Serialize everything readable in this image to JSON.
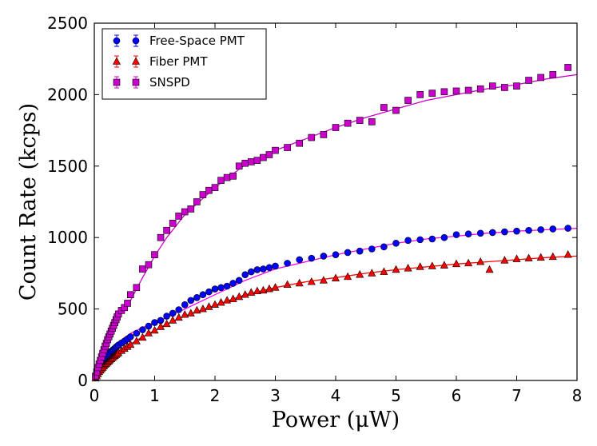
{
  "chart_data": {
    "type": "scatter",
    "title": "",
    "xlabel": "Power (μW)",
    "ylabel": "Count Rate (kcps)",
    "xlim": [
      0,
      8
    ],
    "ylim": [
      0,
      2500
    ],
    "xticks": [
      0,
      1,
      2,
      3,
      4,
      5,
      6,
      7,
      8
    ],
    "yticks": [
      0,
      500,
      1000,
      1500,
      2000,
      2500
    ],
    "xtick_labels": [
      "0",
      "1",
      "2",
      "3",
      "4",
      "5",
      "6",
      "7",
      "8"
    ],
    "ytick_labels": [
      "0",
      "500",
      "1000",
      "1500",
      "2000",
      "2500"
    ],
    "grid": false,
    "legend_position": "top-left",
    "series": [
      {
        "name": "Free-Space PMT",
        "marker": "circle",
        "color": "#0000ff",
        "edge_color": "#000000",
        "line_color": "#ff00ff",
        "x": [
          0.02,
          0.04,
          0.06,
          0.08,
          0.1,
          0.12,
          0.14,
          0.16,
          0.18,
          0.2,
          0.22,
          0.24,
          0.26,
          0.28,
          0.3,
          0.32,
          0.34,
          0.36,
          0.38,
          0.4,
          0.45,
          0.5,
          0.55,
          0.6,
          0.7,
          0.8,
          0.9,
          1.0,
          1.1,
          1.2,
          1.3,
          1.4,
          1.5,
          1.6,
          1.7,
          1.8,
          1.9,
          2.0,
          2.1,
          2.2,
          2.3,
          2.4,
          2.5,
          2.6,
          2.7,
          2.8,
          2.9,
          3.0,
          3.2,
          3.4,
          3.6,
          3.8,
          4.0,
          4.2,
          4.4,
          4.6,
          4.8,
          5.0,
          5.2,
          5.4,
          5.6,
          5.8,
          6.0,
          6.2,
          6.4,
          6.6,
          6.8,
          7.0,
          7.2,
          7.4,
          7.6,
          7.85
        ],
        "y": [
          25,
          45,
          65,
          85,
          100,
          115,
          130,
          145,
          155,
          165,
          175,
          185,
          195,
          205,
          210,
          218,
          225,
          233,
          240,
          248,
          262,
          275,
          290,
          305,
          330,
          355,
          380,
          405,
          420,
          450,
          470,
          495,
          530,
          560,
          580,
          600,
          620,
          640,
          650,
          660,
          680,
          700,
          740,
          760,
          775,
          780,
          790,
          800,
          820,
          845,
          855,
          870,
          880,
          895,
          905,
          920,
          935,
          960,
          980,
          985,
          990,
          1000,
          1020,
          1025,
          1030,
          1035,
          1040,
          1045,
          1050,
          1055,
          1060,
          1065
        ]
      },
      {
        "name": "Fiber PMT",
        "marker": "triangle",
        "color": "#ff0000",
        "edge_color": "#000000",
        "line_color": "#ff0000",
        "x": [
          0.02,
          0.04,
          0.06,
          0.08,
          0.1,
          0.12,
          0.14,
          0.16,
          0.18,
          0.2,
          0.22,
          0.24,
          0.26,
          0.28,
          0.3,
          0.32,
          0.34,
          0.36,
          0.38,
          0.4,
          0.45,
          0.5,
          0.55,
          0.6,
          0.7,
          0.8,
          0.9,
          1.0,
          1.1,
          1.2,
          1.3,
          1.4,
          1.5,
          1.6,
          1.7,
          1.8,
          1.9,
          2.0,
          2.1,
          2.2,
          2.3,
          2.4,
          2.5,
          2.6,
          2.7,
          2.8,
          2.9,
          3.0,
          3.2,
          3.4,
          3.6,
          3.8,
          4.0,
          4.2,
          4.4,
          4.6,
          4.8,
          5.0,
          5.2,
          5.4,
          5.6,
          5.8,
          6.0,
          6.2,
          6.4,
          6.55,
          6.8,
          7.0,
          7.2,
          7.4,
          7.6,
          7.85
        ],
        "y": [
          15,
          30,
          45,
          60,
          70,
          80,
          90,
          100,
          110,
          118,
          126,
          134,
          142,
          150,
          158,
          165,
          172,
          179,
          186,
          193,
          208,
          222,
          236,
          250,
          275,
          300,
          330,
          350,
          375,
          395,
          420,
          440,
          460,
          470,
          490,
          500,
          515,
          530,
          545,
          560,
          570,
          585,
          600,
          615,
          625,
          630,
          640,
          650,
          670,
          680,
          690,
          700,
          715,
          725,
          740,
          750,
          760,
          775,
          785,
          795,
          800,
          805,
          815,
          820,
          830,
          775,
          840,
          850,
          855,
          860,
          865,
          880
        ]
      },
      {
        "name": "SNSPD",
        "marker": "square",
        "color": "#cc00cc",
        "edge_color": "#000000",
        "line_color": "#cc00cc",
        "x": [
          0.02,
          0.04,
          0.06,
          0.08,
          0.1,
          0.12,
          0.14,
          0.16,
          0.18,
          0.2,
          0.22,
          0.24,
          0.26,
          0.28,
          0.3,
          0.32,
          0.34,
          0.36,
          0.38,
          0.4,
          0.45,
          0.5,
          0.55,
          0.6,
          0.7,
          0.8,
          0.9,
          1.0,
          1.1,
          1.2,
          1.3,
          1.4,
          1.5,
          1.6,
          1.7,
          1.8,
          1.9,
          2.0,
          2.1,
          2.2,
          2.3,
          2.4,
          2.5,
          2.6,
          2.7,
          2.8,
          2.9,
          3.0,
          3.2,
          3.4,
          3.6,
          3.8,
          4.0,
          4.2,
          4.4,
          4.6,
          4.8,
          5.0,
          5.2,
          5.4,
          5.6,
          5.8,
          6.0,
          6.2,
          6.4,
          6.6,
          6.8,
          7.0,
          7.2,
          7.4,
          7.6,
          7.85
        ],
        "y": [
          30,
          60,
          90,
          115,
          140,
          165,
          190,
          215,
          240,
          260,
          285,
          305,
          325,
          345,
          365,
          385,
          405,
          425,
          445,
          465,
          490,
          510,
          540,
          600,
          650,
          780,
          810,
          880,
          1000,
          1050,
          1100,
          1150,
          1180,
          1200,
          1250,
          1300,
          1330,
          1350,
          1400,
          1420,
          1430,
          1500,
          1520,
          1530,
          1540,
          1560,
          1580,
          1610,
          1630,
          1660,
          1700,
          1720,
          1770,
          1800,
          1820,
          1810,
          1910,
          1890,
          1960,
          2000,
          2010,
          2020,
          2025,
          2030,
          2040,
          2060,
          2050,
          2060,
          2100,
          2120,
          2140,
          2190
        ]
      }
    ],
    "fit_curves": [
      {
        "series": "Free-Space PMT",
        "color": "#ff00ff",
        "x": [
          0,
          0.1,
          0.2,
          0.3,
          0.4,
          0.5,
          0.6,
          0.8,
          1.0,
          1.2,
          1.5,
          2.0,
          2.5,
          3.0,
          3.5,
          4.0,
          4.5,
          5.0,
          5.5,
          6.0,
          6.5,
          7.0,
          7.5,
          8.0
        ],
        "y": [
          0,
          95,
          170,
          225,
          265,
          300,
          330,
          370,
          405,
          440,
          500,
          600,
          700,
          780,
          830,
          880,
          920,
          960,
          990,
          1010,
          1030,
          1045,
          1055,
          1065
        ]
      },
      {
        "series": "Fiber PMT",
        "color": "#ff0000",
        "x": [
          0,
          0.1,
          0.2,
          0.3,
          0.4,
          0.5,
          0.6,
          0.8,
          1.0,
          1.2,
          1.5,
          2.0,
          2.5,
          3.0,
          3.5,
          4.0,
          4.5,
          5.0,
          5.5,
          6.0,
          6.5,
          7.0,
          7.5,
          8.0
        ],
        "y": [
          0,
          70,
          120,
          158,
          195,
          225,
          255,
          305,
          350,
          395,
          450,
          525,
          600,
          650,
          690,
          720,
          750,
          775,
          795,
          815,
          830,
          845,
          860,
          870
        ]
      },
      {
        "series": "SNSPD",
        "color": "#cc00cc",
        "x": [
          0,
          0.1,
          0.2,
          0.3,
          0.4,
          0.5,
          0.6,
          0.8,
          1.0,
          1.2,
          1.5,
          2.0,
          2.5,
          3.0,
          3.5,
          4.0,
          4.5,
          5.0,
          5.5,
          6.0,
          6.5,
          7.0,
          7.5,
          8.0
        ],
        "y": [
          0,
          140,
          260,
          365,
          465,
          510,
          560,
          720,
          870,
          1000,
          1160,
          1350,
          1510,
          1610,
          1690,
          1770,
          1840,
          1900,
          1960,
          2000,
          2040,
          2070,
          2110,
          2140
        ]
      }
    ]
  }
}
